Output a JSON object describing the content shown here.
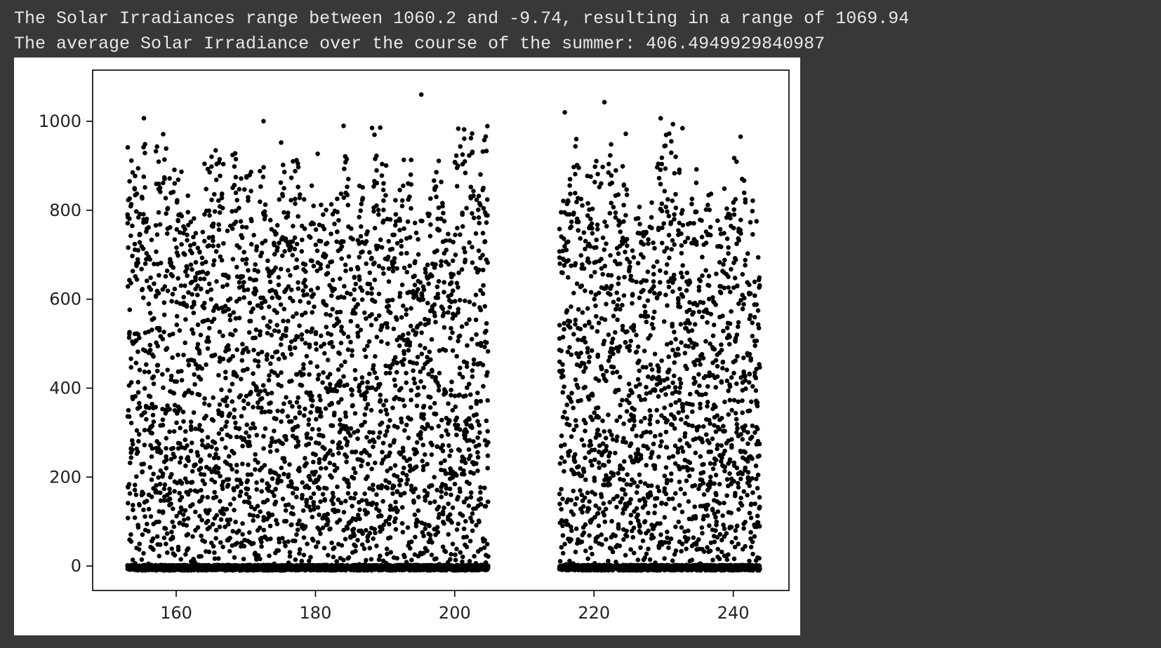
{
  "output": {
    "line1": "The Solar Irradiances range between 1060.2 and -9.74, resulting in a range of 1069.94",
    "line2": "The average Solar Irradiance over the course of the summer: 406.4949929840987"
  },
  "colors": {
    "background": "#383838",
    "text": "#e8e8e8",
    "plot_bg": "#ffffff",
    "marker": "#000000"
  },
  "chart_data": {
    "type": "scatter",
    "title": "",
    "xlabel": "",
    "ylabel": "",
    "xlim": [
      148,
      248
    ],
    "ylim": [
      -55,
      1115
    ],
    "grid": false,
    "xticks": [
      160,
      180,
      200,
      220,
      240
    ],
    "yticks": [
      0,
      200,
      400,
      600,
      800,
      1000
    ],
    "x_gaps": [
      [
        204.5,
        214.5
      ]
    ],
    "series": [
      {
        "marker": "dot",
        "color": "#000000",
        "day_range": [
          153,
          243
        ],
        "days_without_data": [
          205,
          206,
          207,
          208,
          209,
          210,
          211,
          212,
          213,
          214
        ],
        "y_min": -9.74,
        "y_max": 1060.2,
        "y_mean": 406.4949929840987,
        "notable_points": [
          {
            "x": 195.2,
            "y": 1060.2
          },
          {
            "x": 221.5,
            "y": 1043
          },
          {
            "x": 215.8,
            "y": 1020
          }
        ]
      }
    ]
  }
}
